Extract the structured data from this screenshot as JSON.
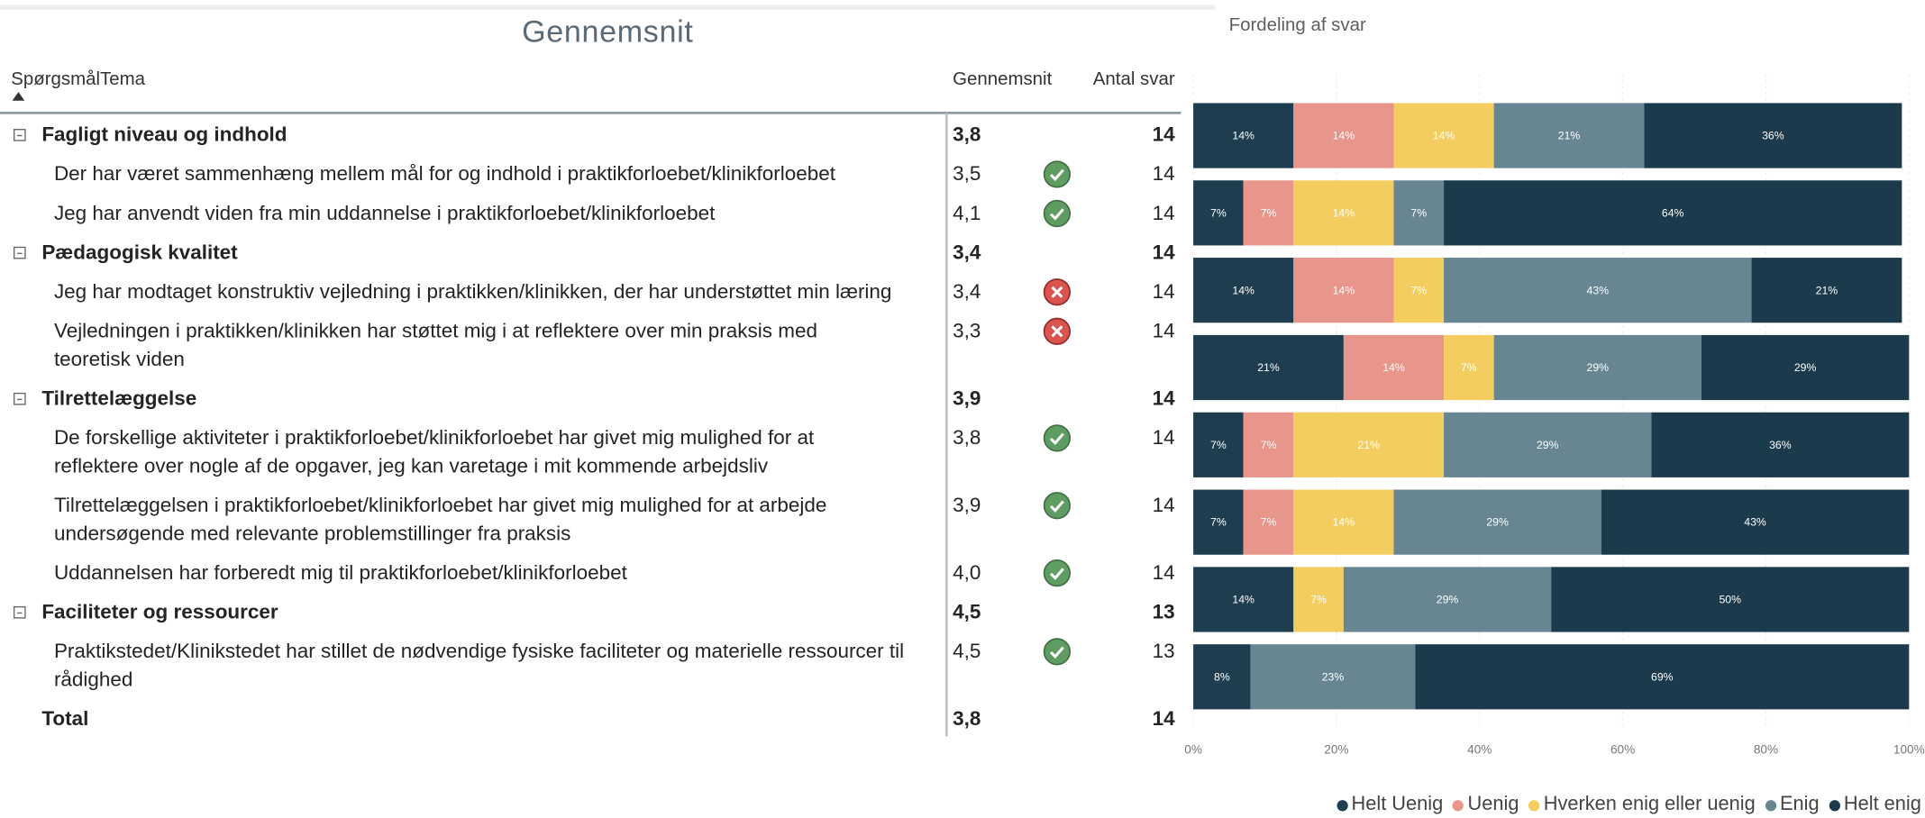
{
  "table": {
    "title": "Gennemsnit",
    "headers": [
      "SpørgsmålTema",
      "Gennemsnit",
      "Antal svar"
    ],
    "groups": [
      {
        "label": "Fagligt niveau og indhold",
        "mean": "3,8",
        "count": 14,
        "items": [
          {
            "label": "Der har været sammenhæng mellem mål for og indhold i praktikforloebet/klinikforloebet",
            "mean": "3,5",
            "icon": "check",
            "count": 14
          },
          {
            "label": "Jeg har anvendt viden fra min uddannelse i praktikforloebet/klinikforloebet",
            "mean": "4,1",
            "icon": "check",
            "count": 14
          }
        ]
      },
      {
        "label": "Pædagogisk kvalitet",
        "mean": "3,4",
        "count": 14,
        "items": [
          {
            "label": "Jeg har modtaget konstruktiv vejledning i praktikken/klinikken, der har understøttet min læring",
            "mean": "3,4",
            "icon": "cross",
            "count": 14
          },
          {
            "label": [
              "Vejledningen i praktikken/klinikken har støttet mig i at reflektere over min praksis med",
              "teoretisk viden"
            ],
            "mean": "3,3",
            "icon": "cross",
            "count": 14
          }
        ]
      },
      {
        "label": "Tilrettelæggelse",
        "mean": "3,9",
        "count": 14,
        "items": [
          {
            "label": [
              "De forskellige aktiviteter i praktikforloebet/klinikforloebet har givet mig mulighed for at",
              "reflektere over nogle af de opgaver, jeg kan varetage i mit kommende arbejdsliv"
            ],
            "mean": "3,8",
            "icon": "check",
            "count": 14
          },
          {
            "label": [
              "Tilrettelæggelsen i praktikforloebet/klinikforloebet har givet mig mulighed for at arbejde",
              "undersøgende med relevante problemstillinger fra praksis"
            ],
            "mean": "3,9",
            "icon": "check",
            "count": 14
          },
          {
            "label": "Uddannelsen har forberedt mig til praktikforloebet/klinikforloebet",
            "mean": "4,0",
            "icon": "check",
            "count": 14
          }
        ]
      },
      {
        "label": "Faciliteter og ressourcer",
        "mean": "4,5",
        "count": 13,
        "items": [
          {
            "label": [
              "Praktikstedet/Klinikstedet har stillet de nødvendige fysiske faciliteter og materielle ressourcer til",
              "rådighed"
            ],
            "mean": "4,5",
            "icon": "check",
            "count": 13
          }
        ]
      }
    ],
    "total": {
      "label": "Total",
      "mean": "3,8",
      "count": 14
    }
  },
  "chart_data": {
    "type": "bar",
    "orientation": "horizontal",
    "stacked": true,
    "title": "Fordeling af svar",
    "categories": [
      null,
      null,
      null,
      null,
      null,
      null,
      null,
      null
    ],
    "series": [
      {
        "name": "Helt Uenig",
        "color": "#1e3d4e",
        "values": [
          14,
          7,
          14,
          21,
          7,
          7,
          14,
          8
        ],
        "value_labels": [
          "14%",
          "7%",
          "14%",
          "21%",
          "7%",
          "7%",
          "14%",
          "8%"
        ]
      },
      {
        "name": "Uenig",
        "color": "#e8958b",
        "values": [
          14,
          7,
          14,
          14,
          7,
          7,
          null,
          null
        ],
        "value_labels": [
          "14%",
          "7%",
          "14%",
          "14%",
          "7%",
          "7%",
          null,
          null
        ]
      },
      {
        "name": "Hverken enig eller uenig",
        "color": "#f3cd60",
        "values": [
          14,
          14,
          7,
          7,
          21,
          14,
          7,
          null
        ],
        "value_labels": [
          "14%",
          "14%",
          "7%",
          "7%",
          "21%",
          "14%",
          "7%",
          null
        ]
      },
      {
        "name": "Enig",
        "color": "#688592",
        "values": [
          21,
          7,
          43,
          29,
          29,
          29,
          29,
          23
        ],
        "value_labels": [
          "21%",
          "7%",
          "43%",
          "29%",
          "29%",
          "29%",
          "29%",
          "23%"
        ]
      },
      {
        "name": "Helt enig",
        "color": "#1b3a4b",
        "values": [
          36,
          64,
          21,
          29,
          36,
          43,
          50,
          69
        ],
        "value_labels": [
          "36%",
          "64%",
          "21%",
          "29%",
          "36%",
          "43%",
          "50%",
          "69%"
        ]
      }
    ],
    "xlim": [
      0,
      100
    ],
    "xticks": [
      {
        "value": 0,
        "label": "0%"
      },
      {
        "value": 20,
        "label": "20%"
      },
      {
        "value": 40,
        "label": "40%"
      },
      {
        "value": 60,
        "label": "60%"
      },
      {
        "value": 80,
        "label": "80%"
      },
      {
        "value": 100,
        "label": "100%"
      }
    ],
    "grid": true
  }
}
